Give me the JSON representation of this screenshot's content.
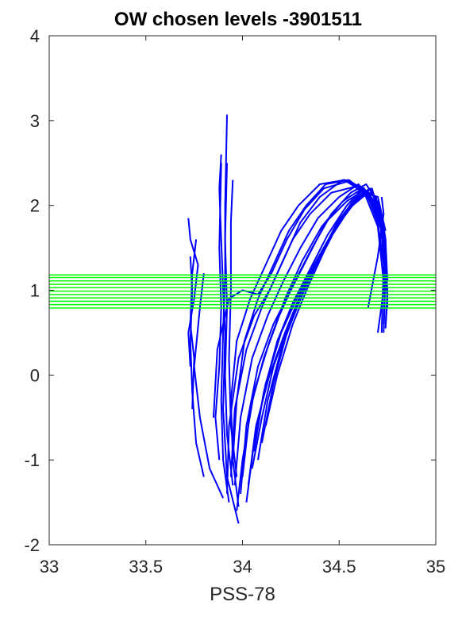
{
  "chart_data": {
    "type": "line",
    "title": "OW chosen levels -3901511",
    "xlabel": "PSS-78",
    "ylabel": "",
    "xlim": [
      33,
      35
    ],
    "ylim": [
      -2,
      4
    ],
    "xticks": [
      "33",
      "33.5",
      "34",
      "34.5",
      "35"
    ],
    "yticks": [
      "-2",
      "-1",
      "0",
      "1",
      "2",
      "3",
      "4"
    ],
    "grid": false,
    "colors": {
      "profiles": "#0000ff",
      "levels": "#00ff00",
      "axes": "#262626"
    },
    "chosen_levels": [
      0.79,
      0.83,
      0.87,
      0.91,
      0.95,
      0.99,
      1.03,
      1.07,
      1.11,
      1.15,
      1.18
    ],
    "profiles": [
      [
        [
          33.73,
          0.1
        ],
        [
          33.72,
          0.5
        ],
        [
          33.75,
          0.9
        ],
        [
          33.77,
          1.3
        ],
        [
          33.73,
          1.6
        ],
        [
          33.72,
          1.85
        ]
      ],
      [
        [
          33.74,
          -0.4
        ],
        [
          33.75,
          0.2
        ],
        [
          33.73,
          0.6
        ],
        [
          33.74,
          1.2
        ],
        [
          33.76,
          1.6
        ]
      ],
      [
        [
          33.8,
          -1.2
        ],
        [
          33.76,
          -0.8
        ],
        [
          33.74,
          -0.2
        ],
        [
          33.73,
          0.4
        ],
        [
          33.74,
          1.0
        ],
        [
          33.73,
          1.4
        ]
      ],
      [
        [
          33.9,
          -1.45
        ],
        [
          33.83,
          -1.1
        ],
        [
          33.78,
          -0.5
        ],
        [
          33.75,
          0.1
        ],
        [
          33.78,
          0.8
        ],
        [
          33.8,
          1.2
        ]
      ],
      [
        [
          33.98,
          -1.75
        ],
        [
          33.92,
          -1.2
        ],
        [
          33.9,
          -0.4
        ],
        [
          33.91,
          0.5
        ],
        [
          33.9,
          1.0
        ],
        [
          33.89,
          1.6
        ],
        [
          33.88,
          2.2
        ],
        [
          33.89,
          2.6
        ]
      ],
      [
        [
          33.93,
          -1.5
        ],
        [
          33.9,
          -1.0
        ],
        [
          33.89,
          -0.3
        ],
        [
          33.9,
          0.5
        ],
        [
          33.91,
          1.2
        ],
        [
          33.91,
          2.0
        ],
        [
          33.92,
          3.07
        ]
      ],
      [
        [
          33.95,
          -1.3
        ],
        [
          33.92,
          -0.7
        ],
        [
          33.91,
          0.0
        ],
        [
          33.92,
          0.8
        ],
        [
          33.91,
          1.6
        ],
        [
          33.92,
          2.5
        ]
      ],
      [
        [
          33.97,
          -1.2
        ],
        [
          33.94,
          -0.6
        ],
        [
          33.93,
          0.2
        ],
        [
          33.94,
          1.0
        ],
        [
          33.94,
          1.8
        ],
        [
          33.95,
          2.3
        ]
      ],
      [
        [
          33.88,
          -1.0
        ],
        [
          33.86,
          -0.5
        ],
        [
          33.88,
          0.1
        ],
        [
          33.89,
          0.8
        ],
        [
          33.88,
          1.5
        ],
        [
          33.89,
          2.5
        ]
      ],
      [
        [
          33.92,
          -1.4
        ],
        [
          33.93,
          -0.6
        ],
        [
          33.98,
          0.2
        ],
        [
          34.06,
          0.7
        ],
        [
          34.14,
          1.0
        ],
        [
          34.22,
          1.4
        ],
        [
          34.3,
          1.8
        ],
        [
          34.4,
          2.1
        ],
        [
          34.52,
          2.3
        ],
        [
          34.62,
          2.2
        ],
        [
          34.7,
          1.9
        ],
        [
          34.74,
          1.5
        ],
        [
          34.75,
          0.9
        ],
        [
          34.74,
          0.55
        ]
      ],
      [
        [
          33.94,
          -1.2
        ],
        [
          33.96,
          -0.4
        ],
        [
          34.02,
          0.3
        ],
        [
          34.1,
          0.8
        ],
        [
          34.18,
          1.2
        ],
        [
          34.26,
          1.6
        ],
        [
          34.35,
          1.9
        ],
        [
          34.46,
          2.15
        ],
        [
          34.58,
          2.22
        ],
        [
          34.66,
          2.1
        ],
        [
          34.72,
          1.7
        ],
        [
          34.74,
          1.2
        ],
        [
          34.73,
          0.5
        ]
      ],
      [
        [
          33.96,
          -1.3
        ],
        [
          33.99,
          -0.5
        ],
        [
          34.05,
          0.2
        ],
        [
          34.13,
          0.7
        ],
        [
          34.21,
          1.1
        ],
        [
          34.3,
          1.5
        ],
        [
          34.39,
          1.85
        ],
        [
          34.5,
          2.1
        ],
        [
          34.6,
          2.25
        ],
        [
          34.68,
          2.05
        ],
        [
          34.73,
          1.6
        ],
        [
          34.75,
          1.0
        ],
        [
          34.74,
          0.6
        ]
      ],
      [
        [
          33.99,
          -1.4
        ],
        [
          34.02,
          -0.6
        ],
        [
          34.08,
          0.1
        ],
        [
          34.16,
          0.6
        ],
        [
          34.25,
          1.0
        ],
        [
          34.34,
          1.4
        ],
        [
          34.43,
          1.8
        ],
        [
          34.54,
          2.05
        ],
        [
          34.63,
          2.18
        ],
        [
          34.7,
          1.95
        ],
        [
          34.74,
          1.4
        ],
        [
          34.75,
          0.8
        ]
      ],
      [
        [
          34.02,
          -1.5
        ],
        [
          34.06,
          -0.8
        ],
        [
          34.12,
          -0.1
        ],
        [
          34.2,
          0.5
        ],
        [
          34.28,
          0.9
        ],
        [
          34.37,
          1.3
        ],
        [
          34.47,
          1.7
        ],
        [
          34.57,
          2.0
        ],
        [
          34.65,
          2.15
        ],
        [
          34.71,
          1.9
        ],
        [
          34.74,
          1.3
        ]
      ],
      [
        [
          34.05,
          -1.1
        ],
        [
          34.1,
          -0.5
        ],
        [
          34.16,
          0.1
        ],
        [
          34.24,
          0.6
        ],
        [
          34.32,
          1.0
        ],
        [
          34.41,
          1.45
        ],
        [
          34.51,
          1.85
        ],
        [
          34.6,
          2.1
        ],
        [
          34.67,
          2.2
        ],
        [
          34.72,
          1.8
        ]
      ],
      [
        [
          34.08,
          -1.0
        ],
        [
          34.13,
          -0.3
        ],
        [
          34.2,
          0.3
        ],
        [
          34.28,
          0.8
        ],
        [
          34.36,
          1.2
        ],
        [
          34.45,
          1.6
        ],
        [
          34.55,
          1.95
        ],
        [
          34.63,
          2.15
        ],
        [
          34.7,
          2.1
        ],
        [
          34.74,
          1.7
        ]
      ],
      [
        [
          33.97,
          -1.6
        ],
        [
          34.0,
          -1.0
        ],
        [
          34.06,
          -0.2
        ],
        [
          34.14,
          0.4
        ],
        [
          34.22,
          0.9
        ],
        [
          34.31,
          1.35
        ],
        [
          34.41,
          1.75
        ],
        [
          34.52,
          2.05
        ],
        [
          34.62,
          2.2
        ],
        [
          34.69,
          2.0
        ],
        [
          34.74,
          1.5
        ]
      ],
      [
        [
          34.0,
          -1.2
        ],
        [
          34.04,
          -0.4
        ],
        [
          34.11,
          0.2
        ],
        [
          34.19,
          0.7
        ],
        [
          34.27,
          1.1
        ],
        [
          34.36,
          1.5
        ],
        [
          34.46,
          1.9
        ],
        [
          34.56,
          2.15
        ],
        [
          34.64,
          2.25
        ],
        [
          34.71,
          2.0
        ],
        [
          34.74,
          1.6
        ],
        [
          34.75,
          1.1
        ]
      ],
      [
        [
          34.03,
          -1.3
        ],
        [
          34.07,
          -0.6
        ],
        [
          34.14,
          0.0
        ],
        [
          34.22,
          0.5
        ],
        [
          34.3,
          0.95
        ],
        [
          34.39,
          1.35
        ],
        [
          34.49,
          1.8
        ],
        [
          34.59,
          2.1
        ],
        [
          34.66,
          2.2
        ],
        [
          34.72,
          1.9
        ]
      ],
      [
        [
          34.1,
          -0.8
        ],
        [
          34.16,
          -0.1
        ],
        [
          34.23,
          0.5
        ],
        [
          34.31,
          0.95
        ],
        [
          34.39,
          1.35
        ],
        [
          34.48,
          1.75
        ],
        [
          34.57,
          2.05
        ],
        [
          34.65,
          2.15
        ],
        [
          34.71,
          1.95
        ],
        [
          34.74,
          1.4
        ]
      ],
      [
        [
          33.95,
          -1.0
        ],
        [
          33.97,
          -0.3
        ],
        [
          34.01,
          0.4
        ],
        [
          34.08,
          0.9
        ],
        [
          34.16,
          1.3
        ],
        [
          34.24,
          1.7
        ],
        [
          34.33,
          2.0
        ],
        [
          34.43,
          2.25
        ],
        [
          34.55,
          2.3
        ],
        [
          34.64,
          2.15
        ],
        [
          34.7,
          1.8
        ],
        [
          34.73,
          1.3
        ],
        [
          34.72,
          0.5
        ]
      ],
      [
        [
          34.12,
          -0.6
        ],
        [
          34.18,
          0.0
        ],
        [
          34.26,
          0.6
        ],
        [
          34.34,
          1.05
        ],
        [
          34.42,
          1.45
        ],
        [
          34.51,
          1.85
        ],
        [
          34.6,
          2.1
        ],
        [
          34.67,
          2.15
        ],
        [
          34.72,
          1.85
        ]
      ],
      [
        [
          33.98,
          -1.55
        ],
        [
          33.95,
          -1.0
        ],
        [
          33.94,
          -0.3
        ],
        [
          33.97,
          0.4
        ],
        [
          34.04,
          0.9
        ],
        [
          34.12,
          1.3
        ],
        [
          34.2,
          1.7
        ],
        [
          34.29,
          2.0
        ],
        [
          34.4,
          2.25
        ],
        [
          34.53,
          2.3
        ],
        [
          34.63,
          2.2
        ],
        [
          34.71,
          1.85
        ],
        [
          34.74,
          1.2
        ],
        [
          34.73,
          0.6
        ]
      ],
      [
        [
          34.06,
          -0.9
        ],
        [
          34.11,
          -0.2
        ],
        [
          34.18,
          0.4
        ],
        [
          34.26,
          0.85
        ],
        [
          34.35,
          1.25
        ],
        [
          34.44,
          1.65
        ],
        [
          34.54,
          2.0
        ],
        [
          34.62,
          2.2
        ],
        [
          34.69,
          2.1
        ],
        [
          34.73,
          1.7
        ],
        [
          34.74,
          1.0
        ]
      ],
      [
        [
          33.85,
          -0.5
        ],
        [
          33.87,
          0.3
        ],
        [
          33.93,
          0.9
        ],
        [
          34.0,
          1.0
        ],
        [
          34.08,
          0.95
        ],
        [
          34.15,
          1.2
        ],
        [
          34.23,
          1.6
        ],
        [
          34.32,
          1.95
        ],
        [
          34.42,
          2.2
        ],
        [
          34.54,
          2.28
        ],
        [
          34.63,
          2.15
        ],
        [
          34.7,
          1.75
        ],
        [
          34.73,
          1.1
        ]
      ],
      [
        [
          34.65,
          0.8
        ],
        [
          34.7,
          1.4
        ],
        [
          34.73,
          1.9
        ],
        [
          34.72,
          2.1
        ]
      ],
      [
        [
          34.7,
          0.5
        ],
        [
          34.73,
          1.0
        ],
        [
          34.74,
          1.6
        ],
        [
          34.72,
          1.9
        ]
      ]
    ]
  }
}
